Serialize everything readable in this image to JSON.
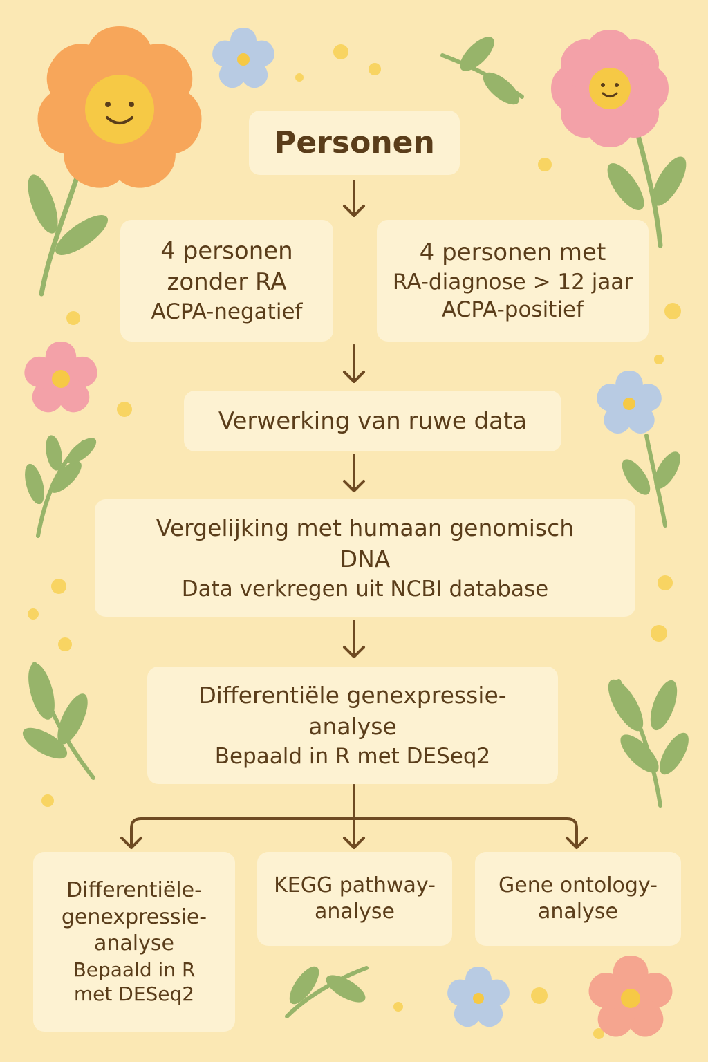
{
  "flow": {
    "personen": "Personen",
    "group_a": {
      "line1": "4 personen",
      "line2": "zonder RA",
      "line3": "ACPA-negatief"
    },
    "group_b": {
      "line1": "4 personen met",
      "line2": "RA-diagnose > 12 jaar",
      "line3": "ACPA-positief"
    },
    "processing": "Verwerking van ruwe data",
    "comparison": {
      "line1": "Vergelijking met humaan genomisch",
      "line2": "DNA",
      "line3": "Data verkregen uit NCBI database"
    },
    "dge": {
      "line1": "Differentiële genexpressie-",
      "line2": "analyse",
      "line3": "Bepaald in R met DESeq2"
    },
    "branch_dge": {
      "line1": "Differentiële-",
      "line2": "genexpressie-",
      "line3": "analyse",
      "line4": "Bepaald in R",
      "line5": "met DESeq2"
    },
    "branch_kegg": {
      "line1": "KEGG pathway-",
      "line2": "analyse"
    },
    "branch_go": {
      "line1": "Gene ontology-",
      "line2": "analyse"
    }
  },
  "colors": {
    "background": "#fbe8b4",
    "box": "#fdf2d2",
    "text": "#5a3d1a",
    "arrow": "#6e4a22",
    "flower_orange": "#f7a65a",
    "flower_pink": "#f3a1a8",
    "flower_blue": "#b8cbe3",
    "leaf": "#97b46a",
    "dot": "#f8d462"
  },
  "decorations": [
    "flower-orange-icon",
    "flower-pink-icon",
    "flower-blue-icon",
    "leaf-icon",
    "dot-icon"
  ]
}
